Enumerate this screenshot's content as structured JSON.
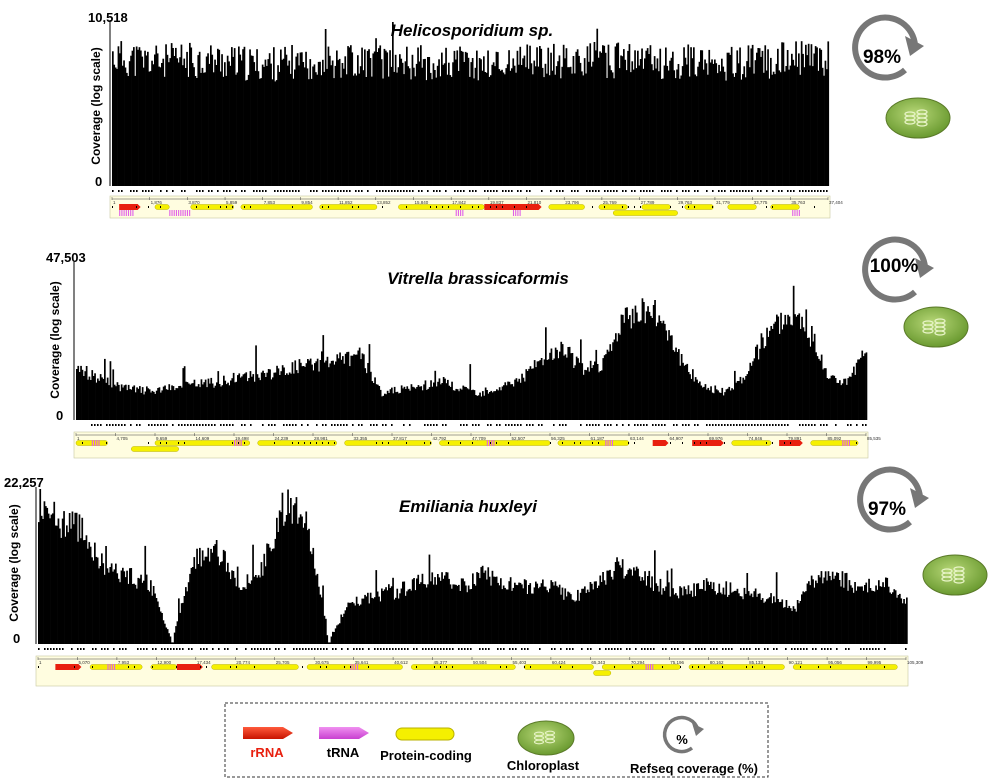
{
  "chart_data": [
    {
      "type": "area",
      "title": "Helicosporidium sp.",
      "ylabel": "Coverage (log scale)",
      "y_max_label": "10,518",
      "y_min_label": "0",
      "yscale": "log",
      "ylim": [
        0,
        10518
      ],
      "genome_positions": [
        "1",
        "1,876",
        "3,870",
        "5,859",
        "7,853",
        "9,854",
        "11,852",
        "13,852",
        "15,840",
        "17,842",
        "19,837",
        "21,810",
        "23,796",
        "25,769",
        "27,789",
        "29,763",
        "31,779",
        "33,775",
        "35,763",
        "37,404"
      ],
      "refseq_coverage": "98%",
      "coverage_profile": [
        0.82,
        0.8,
        0.79,
        0.8,
        0.8,
        0.78,
        0.77,
        0.78,
        0.79,
        0.8,
        0.8,
        0.79,
        0.79,
        0.78,
        0.78,
        0.77,
        0.78,
        0.79,
        0.8,
        0.8,
        0.8,
        0.8,
        0.79,
        0.79,
        0.79,
        0.78,
        0.79,
        0.8,
        0.81,
        0.81
      ],
      "gene_features": [
        {
          "kind": "rRNA",
          "start": 0.01,
          "end": 0.04,
          "row": 0
        },
        {
          "kind": "protein",
          "start": 0.06,
          "end": 0.08,
          "row": 0
        },
        {
          "kind": "protein",
          "start": 0.11,
          "end": 0.17,
          "row": 0
        },
        {
          "kind": "protein",
          "start": 0.18,
          "end": 0.28,
          "row": 0
        },
        {
          "kind": "protein",
          "start": 0.29,
          "end": 0.37,
          "row": 0
        },
        {
          "kind": "protein",
          "start": 0.4,
          "end": 0.52,
          "row": 0
        },
        {
          "kind": "rRNA",
          "start": 0.52,
          "end": 0.6,
          "row": 0
        },
        {
          "kind": "protein",
          "start": 0.61,
          "end": 0.66,
          "row": 0
        },
        {
          "kind": "protein",
          "start": 0.68,
          "end": 0.72,
          "row": 0
        },
        {
          "kind": "protein",
          "start": 0.74,
          "end": 0.78,
          "row": 0
        },
        {
          "kind": "protein",
          "start": 0.8,
          "end": 0.84,
          "row": 0
        },
        {
          "kind": "protein",
          "start": 0.86,
          "end": 0.9,
          "row": 0
        },
        {
          "kind": "protein",
          "start": 0.92,
          "end": 0.96,
          "row": 0
        },
        {
          "kind": "protein",
          "start": 0.7,
          "end": 0.79,
          "row": 1
        },
        {
          "kind": "tRNA",
          "start": 0.01,
          "end": 0.03,
          "row": 1
        },
        {
          "kind": "tRNA",
          "start": 0.08,
          "end": 0.11,
          "row": 1
        },
        {
          "kind": "tRNA",
          "start": 0.48,
          "end": 0.49,
          "row": 1
        },
        {
          "kind": "tRNA",
          "start": 0.56,
          "end": 0.57,
          "row": 1
        },
        {
          "kind": "tRNA",
          "start": 0.95,
          "end": 0.96,
          "row": 1
        }
      ]
    },
    {
      "type": "area",
      "title": "Vitrella brassicaformis",
      "ylabel": "Coverage (log scale)",
      "y_max_label": "47,503",
      "y_min_label": "0",
      "yscale": "log",
      "ylim": [
        0,
        47503
      ],
      "genome_positions": [
        "1",
        "4,705",
        "9,659",
        "14,609",
        "19,498",
        "24,239",
        "28,981",
        "33,355",
        "37,817",
        "42,792",
        "47,709",
        "52,507",
        "56,325",
        "61,187",
        "63,144",
        "64,907",
        "69,976",
        "74,846",
        "79,891",
        "85,092",
        "85,535"
      ],
      "refseq_coverage": "100%",
      "coverage_profile": [
        0.35,
        0.28,
        0.22,
        0.2,
        0.19,
        0.22,
        0.24,
        0.25,
        0.28,
        0.3,
        0.32,
        0.36,
        0.37,
        0.4,
        0.42,
        0.18,
        0.2,
        0.22,
        0.26,
        0.2,
        0.18,
        0.22,
        0.28,
        0.4,
        0.48,
        0.32,
        0.38,
        0.66,
        0.75,
        0.66,
        0.35,
        0.22,
        0.18,
        0.3,
        0.55,
        0.7,
        0.64,
        0.3,
        0.25,
        0.45
      ],
      "gene_features": [
        {
          "kind": "protein",
          "start": 0.0,
          "end": 0.04,
          "row": 0
        },
        {
          "kind": "protein",
          "start": 0.1,
          "end": 0.22,
          "row": 0
        },
        {
          "kind": "protein",
          "start": 0.23,
          "end": 0.33,
          "row": 0
        },
        {
          "kind": "protein",
          "start": 0.34,
          "end": 0.45,
          "row": 0
        },
        {
          "kind": "protein",
          "start": 0.46,
          "end": 0.6,
          "row": 0
        },
        {
          "kind": "protein",
          "start": 0.61,
          "end": 0.7,
          "row": 0
        },
        {
          "kind": "rRNA",
          "start": 0.73,
          "end": 0.75,
          "row": 0
        },
        {
          "kind": "rRNA",
          "start": 0.78,
          "end": 0.82,
          "row": 0
        },
        {
          "kind": "rRNA",
          "start": 0.89,
          "end": 0.92,
          "row": 0
        },
        {
          "kind": "protein",
          "start": 0.83,
          "end": 0.88,
          "row": 0
        },
        {
          "kind": "protein",
          "start": 0.93,
          "end": 0.99,
          "row": 0
        },
        {
          "kind": "protein",
          "start": 0.07,
          "end": 0.13,
          "row": 1
        },
        {
          "kind": "tRNA",
          "start": 0.02,
          "end": 0.03,
          "row": 0
        },
        {
          "kind": "tRNA",
          "start": 0.2,
          "end": 0.21,
          "row": 0
        },
        {
          "kind": "tRNA",
          "start": 0.52,
          "end": 0.53,
          "row": 0
        },
        {
          "kind": "tRNA",
          "start": 0.67,
          "end": 0.68,
          "row": 0
        },
        {
          "kind": "tRNA",
          "start": 0.97,
          "end": 0.98,
          "row": 0
        }
      ]
    },
    {
      "type": "area",
      "title": "Emiliania huxleyi",
      "ylabel": "Coverage (log scale)",
      "y_max_label": "22,257",
      "y_min_label": "0",
      "yscale": "log",
      "ylim": [
        0,
        22257
      ],
      "genome_positions": [
        "1",
        "5,070",
        "7,953",
        "12,900",
        "17,434",
        "20,774",
        "25,705",
        "30,675",
        "35,641",
        "40,612",
        "45,377",
        "50,504",
        "55,403",
        "60,424",
        "65,343",
        "70,294",
        "75,196",
        "80,162",
        "85,133",
        "90,121",
        "95,056",
        "99,995",
        "105,309"
      ],
      "refseq_coverage": "97%",
      "coverage_profile": [
        0.92,
        0.8,
        0.75,
        0.5,
        0.45,
        0.4,
        0.02,
        0.55,
        0.62,
        0.4,
        0.48,
        0.9,
        0.88,
        0.02,
        0.28,
        0.32,
        0.34,
        0.4,
        0.45,
        0.38,
        0.46,
        0.4,
        0.38,
        0.4,
        0.3,
        0.38,
        0.52,
        0.46,
        0.38,
        0.34,
        0.4,
        0.36,
        0.34,
        0.3,
        0.24,
        0.46,
        0.44,
        0.36,
        0.4,
        0.28
      ],
      "gene_features": [
        {
          "kind": "rRNA",
          "start": 0.02,
          "end": 0.05,
          "row": 0
        },
        {
          "kind": "protein",
          "start": 0.06,
          "end": 0.12,
          "row": 0
        },
        {
          "kind": "protein",
          "start": 0.13,
          "end": 0.16,
          "row": 0
        },
        {
          "kind": "rRNA",
          "start": 0.16,
          "end": 0.19,
          "row": 0
        },
        {
          "kind": "protein",
          "start": 0.2,
          "end": 0.3,
          "row": 0
        },
        {
          "kind": "protein",
          "start": 0.31,
          "end": 0.42,
          "row": 0
        },
        {
          "kind": "protein",
          "start": 0.43,
          "end": 0.55,
          "row": 0
        },
        {
          "kind": "protein",
          "start": 0.56,
          "end": 0.64,
          "row": 0
        },
        {
          "kind": "protein",
          "start": 0.65,
          "end": 0.74,
          "row": 0
        },
        {
          "kind": "protein",
          "start": 0.75,
          "end": 0.86,
          "row": 0
        },
        {
          "kind": "protein",
          "start": 0.87,
          "end": 0.99,
          "row": 0
        },
        {
          "kind": "protein",
          "start": 0.64,
          "end": 0.66,
          "row": 1
        },
        {
          "kind": "tRNA",
          "start": 0.08,
          "end": 0.09,
          "row": 0
        },
        {
          "kind": "tRNA",
          "start": 0.36,
          "end": 0.37,
          "row": 0
        },
        {
          "kind": "tRNA",
          "start": 0.7,
          "end": 0.71,
          "row": 0
        }
      ]
    }
  ],
  "legend": {
    "rrna_label": "rRNA",
    "trna_label": "tRNA",
    "protein_label": "Protein-coding",
    "chloroplast_label": "Chloroplast",
    "refseq_label": "Refseq coverage (%)",
    "refseq_symbol": "%"
  },
  "colors": {
    "coverage": "#000000",
    "rrna": "#e8200f",
    "trna": "#e060e8",
    "protein": "#f5f000",
    "protein_edge": "#b8b000",
    "chloroplast": "#8ab848",
    "track_bg": "#fffde0"
  }
}
